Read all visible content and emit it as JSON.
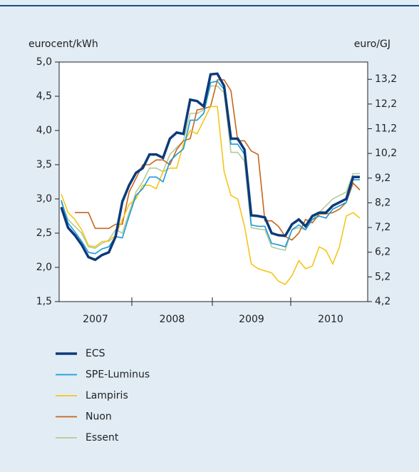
{
  "chart_data": {
    "type": "line",
    "y_label": "eurocent/kWh",
    "y2_label": "euro/GJ",
    "year_labels": [
      "2007",
      "2008",
      "2009",
      "2010"
    ],
    "ylim": [
      1.5,
      5.0
    ],
    "yticks": [
      {
        "value": 1.5,
        "label": "1,5"
      },
      {
        "value": 2.0,
        "label": "2,0"
      },
      {
        "value": 2.5,
        "label": "2,5"
      },
      {
        "value": 3.0,
        "label": "3,0"
      },
      {
        "value": 3.5,
        "label": "3,5"
      },
      {
        "value": 4.0,
        "label": "4,0"
      },
      {
        "value": 4.5,
        "label": "4,5"
      },
      {
        "value": 5.0,
        "label": "5,0"
      }
    ],
    "y2lim": [
      4.2,
      13.9
    ],
    "y2ticks": [
      {
        "value": 4.2,
        "label": "4,2"
      },
      {
        "value": 5.2,
        "label": "5,2"
      },
      {
        "value": 6.2,
        "label": "6,2"
      },
      {
        "value": 7.2,
        "label": "7,2"
      },
      {
        "value": 8.2,
        "label": "8,2"
      },
      {
        "value": 9.2,
        "label": "9,2"
      },
      {
        "value": 10.2,
        "label": "10,2"
      },
      {
        "value": 11.2,
        "label": "11,2"
      },
      {
        "value": 12.2,
        "label": "12,2"
      },
      {
        "value": 13.2,
        "label": "13,2"
      }
    ],
    "grid": false,
    "series": [
      {
        "name": "ECS",
        "color": "#0d3a7a",
        "values": [
          2.88,
          2.58,
          2.47,
          2.33,
          2.15,
          2.11,
          2.18,
          2.22,
          2.45,
          2.96,
          3.2,
          3.38,
          3.45,
          3.65,
          3.65,
          3.6,
          3.88,
          3.97,
          3.95,
          4.45,
          4.43,
          4.35,
          4.82,
          4.83,
          4.65,
          3.88,
          3.88,
          3.72,
          2.76,
          2.75,
          2.73,
          2.5,
          2.47,
          2.46,
          2.63,
          2.7,
          2.6,
          2.75,
          2.8,
          2.8,
          2.9,
          2.95,
          3.0,
          3.32,
          3.32
        ]
      },
      {
        "name": "SPE-Luminus",
        "color": "#1a9bd7",
        "values": [
          2.98,
          2.65,
          2.52,
          2.38,
          2.22,
          2.2,
          2.27,
          2.3,
          2.45,
          2.43,
          2.75,
          3.05,
          3.15,
          3.32,
          3.32,
          3.25,
          3.55,
          3.65,
          3.73,
          4.15,
          4.15,
          4.25,
          4.7,
          4.72,
          4.6,
          3.8,
          3.8,
          3.65,
          2.62,
          2.6,
          2.6,
          2.35,
          2.33,
          2.3,
          2.55,
          2.62,
          2.55,
          2.7,
          2.75,
          2.72,
          2.85,
          2.9,
          2.95,
          3.28,
          3.28
        ]
      },
      {
        "name": "Lampiris",
        "color": "#f5c518",
        "values": [
          3.07,
          2.8,
          2.7,
          2.55,
          2.32,
          2.3,
          2.38,
          2.38,
          2.47,
          2.7,
          2.92,
          3.0,
          3.2,
          3.2,
          3.15,
          3.4,
          3.45,
          3.45,
          3.8,
          4.0,
          3.95,
          4.15,
          4.35,
          4.35,
          3.4,
          3.05,
          3.0,
          2.6,
          2.05,
          1.98,
          1.95,
          1.92,
          1.8,
          1.75,
          1.88,
          2.1,
          1.98,
          2.02,
          2.3,
          2.25,
          2.05,
          2.3,
          2.75,
          2.8,
          2.72
        ]
      },
      {
        "name": "Nuon",
        "color": "#c8651b",
        "values": [
          null,
          null,
          2.8,
          2.8,
          2.8,
          2.57,
          2.57,
          2.57,
          2.63,
          2.63,
          3.1,
          3.3,
          3.5,
          3.5,
          3.57,
          3.57,
          3.5,
          3.72,
          3.85,
          3.88,
          4.3,
          4.32,
          4.35,
          4.74,
          4.74,
          4.58,
          3.85,
          3.85,
          3.7,
          3.65,
          2.68,
          2.68,
          2.6,
          2.45,
          2.4,
          2.5,
          2.7,
          2.65,
          2.78,
          2.78,
          2.8,
          2.85,
          2.95,
          3.23,
          3.13
        ]
      },
      {
        "name": "Essent",
        "color": "#b5c99a",
        "values": [
          2.95,
          2.7,
          2.6,
          2.5,
          2.3,
          2.28,
          2.35,
          2.4,
          2.55,
          2.5,
          2.8,
          3.1,
          3.25,
          3.45,
          3.45,
          3.4,
          3.65,
          3.75,
          3.85,
          4.25,
          4.25,
          4.3,
          4.65,
          4.65,
          4.55,
          3.68,
          3.68,
          3.55,
          2.58,
          2.56,
          2.55,
          2.3,
          2.27,
          2.25,
          2.55,
          2.58,
          2.55,
          2.7,
          2.8,
          2.9,
          3.0,
          3.05,
          3.1,
          3.37,
          3.37
        ]
      }
    ]
  }
}
